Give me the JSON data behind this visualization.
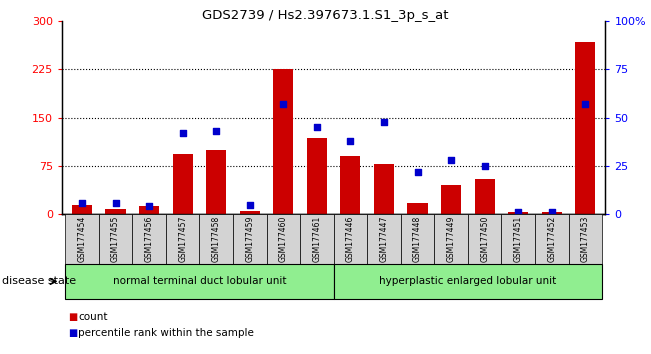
{
  "title": "GDS2739 / Hs2.397673.1.S1_3p_s_at",
  "samples": [
    "GSM177454",
    "GSM177455",
    "GSM177456",
    "GSM177457",
    "GSM177458",
    "GSM177459",
    "GSM177460",
    "GSM177461",
    "GSM177446",
    "GSM177447",
    "GSM177448",
    "GSM177449",
    "GSM177450",
    "GSM177451",
    "GSM177452",
    "GSM177453"
  ],
  "counts": [
    15,
    8,
    12,
    93,
    100,
    5,
    225,
    118,
    90,
    78,
    18,
    45,
    55,
    4,
    4,
    268
  ],
  "percentiles": [
    6,
    6,
    4,
    42,
    43,
    5,
    57,
    45,
    38,
    48,
    22,
    28,
    25,
    1,
    1,
    57
  ],
  "group1_label": "normal terminal duct lobular unit",
  "group2_label": "hyperplastic enlarged lobular unit",
  "group1_count": 8,
  "group2_count": 8,
  "yticks_left": [
    0,
    75,
    150,
    225,
    300
  ],
  "yticks_right": [
    0,
    25,
    50,
    75,
    100
  ],
  "ytick_right_labels": [
    "0",
    "25",
    "50",
    "75",
    "100%"
  ],
  "bar_color": "#cc0000",
  "dot_color": "#0000cc",
  "xlabel_area_color": "#d3d3d3",
  "group_bg_color": "#90ee90",
  "disease_state_label": "disease state"
}
